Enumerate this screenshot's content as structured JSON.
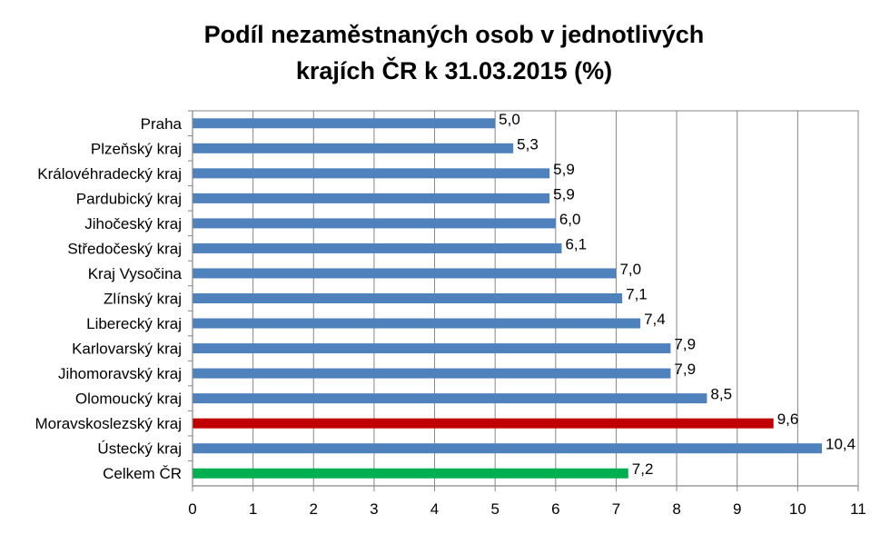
{
  "title_lines": [
    "Podíl nezaměstnaných osob v jednotlivých",
    "krajích ČR k 31.03.2015 (%)"
  ],
  "chart_data": {
    "type": "bar",
    "orientation": "horizontal",
    "title": "Podíl nezaměstnaných osob v jednotlivých krajích ČR k 31.03.2015 (%)",
    "xlabel": "",
    "ylabel": "",
    "xlim": [
      0,
      11
    ],
    "x_ticks": [
      "0",
      "1",
      "2",
      "3",
      "4",
      "5",
      "6",
      "7",
      "8",
      "9",
      "10",
      "11"
    ],
    "grid": "vertical",
    "categories": [
      "Praha",
      "Plzeňský kraj",
      "Královéhradecký kraj",
      "Pardubický kraj",
      "Jihočeský kraj",
      "Středočeský kraj",
      "Kraj Vysočina",
      "Zlínský kraj",
      "Liberecký kraj",
      "Karlovarský kraj",
      "Jihomoravský kraj",
      "Olomoucký kraj",
      "Moravskoslezský kraj",
      "Ústecký kraj",
      "Celkem ČR"
    ],
    "values": [
      5.0,
      5.3,
      5.9,
      5.9,
      6.0,
      6.1,
      7.0,
      7.1,
      7.4,
      7.9,
      7.9,
      8.5,
      9.6,
      10.4,
      7.2
    ],
    "value_labels": [
      "5,0",
      "5,3",
      "5,9",
      "5,9",
      "6,0",
      "6,1",
      "7,0",
      "7,1",
      "7,4",
      "7,9",
      "7,9",
      "8,5",
      "9,6",
      "10,4",
      "7,2"
    ],
    "colors": [
      "#4f81bd",
      "#4f81bd",
      "#4f81bd",
      "#4f81bd",
      "#4f81bd",
      "#4f81bd",
      "#4f81bd",
      "#4f81bd",
      "#4f81bd",
      "#4f81bd",
      "#4f81bd",
      "#4f81bd",
      "#c00000",
      "#4f81bd",
      "#00b050"
    ]
  }
}
